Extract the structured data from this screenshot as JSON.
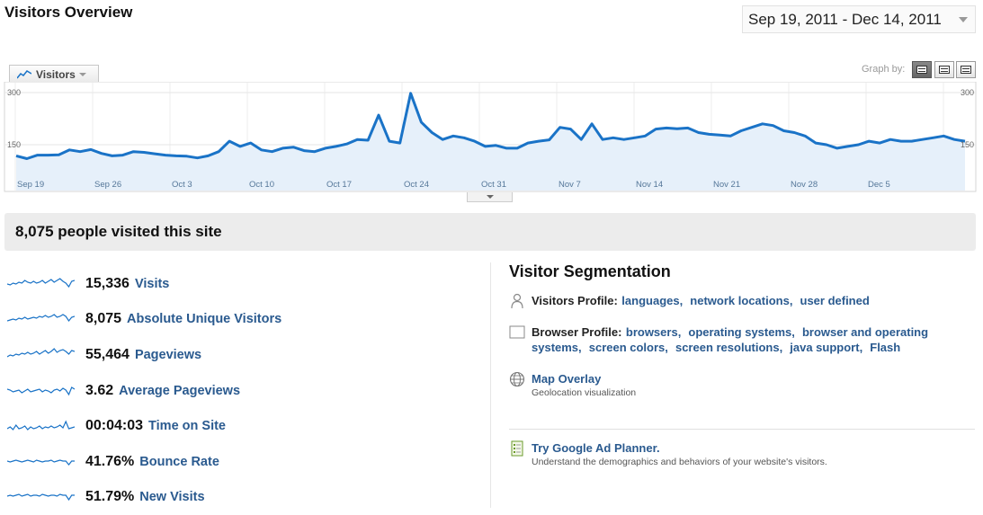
{
  "header": {
    "title": "Visitors Overview",
    "date_range": "Sep 19, 2011 - Dec 14, 2011"
  },
  "graph": {
    "metric_tab": "Visitors",
    "graph_by_label": "Graph by:"
  },
  "chart_data": {
    "type": "area",
    "series": [
      {
        "values": [
          118,
          110,
          120,
          120,
          121,
          135,
          130,
          136,
          125,
          118,
          120,
          130,
          128,
          124,
          120,
          118,
          117,
          112,
          118,
          130,
          160,
          145,
          155,
          135,
          130,
          140,
          143,
          133,
          130,
          140,
          145,
          152,
          165,
          163,
          235,
          160,
          155,
          298,
          215,
          185,
          165,
          175,
          170,
          160,
          145,
          148,
          140,
          140,
          155,
          160,
          164,
          200,
          195,
          165,
          210,
          165,
          170,
          165,
          170,
          175,
          195,
          198,
          196,
          198,
          185,
          180,
          178,
          175,
          190,
          200,
          210,
          205,
          190,
          185,
          175,
          155,
          150,
          140,
          145,
          150,
          160,
          155,
          165,
          160,
          160,
          165,
          170,
          175,
          165,
          160
        ]
      }
    ],
    "x_tick_labels": [
      "Sep 19",
      "Sep 26",
      "Oct 3",
      "Oct 10",
      "Oct 17",
      "Oct 24",
      "Oct 31",
      "Nov 7",
      "Nov 14",
      "Nov 21",
      "Nov 28",
      "Dec 5"
    ],
    "y_tick_labels_left": [
      "300",
      "150"
    ],
    "y_tick_labels_right": [
      "300",
      "150"
    ],
    "ylim": [
      0,
      300
    ],
    "line_color": "#1a73c7",
    "fill_color": "#e6f0fa",
    "grid": true
  },
  "summary": {
    "text": "8,075 people visited this site"
  },
  "metrics": [
    {
      "value": "15,336",
      "label": "Visits"
    },
    {
      "value": "8,075",
      "label": "Absolute Unique Visitors"
    },
    {
      "value": "55,464",
      "label": "Pageviews"
    },
    {
      "value": "3.62",
      "label": "Average Pageviews"
    },
    {
      "value": "00:04:03",
      "label": "Time on Site"
    },
    {
      "value": "41.76%",
      "label": "Bounce Rate"
    },
    {
      "value": "51.79%",
      "label": "New Visits"
    }
  ],
  "segmentation": {
    "title": "Visitor Segmentation",
    "visitors_profile": {
      "label": "Visitors Profile:",
      "links": [
        "languages",
        "network locations",
        "user defined"
      ]
    },
    "browser_profile": {
      "label": "Browser Profile:",
      "links": [
        "browsers",
        "operating systems",
        "browser and operating systems",
        "screen colors",
        "screen resolutions",
        "java support",
        "Flash"
      ]
    },
    "map_overlay": {
      "link": "Map Overlay",
      "sub": "Geolocation visualization"
    },
    "ad_planner": {
      "link": "Try Google Ad Planner.",
      "sub": "Understand the demographics and behaviors of your website's visitors."
    }
  },
  "colors": {
    "link": "#2a5a8f",
    "accent_line": "#1a73c7"
  },
  "icons": [
    "line-chart-icon",
    "person-icon",
    "browser-window-icon",
    "globe-icon",
    "ad-planner-icon"
  ]
}
